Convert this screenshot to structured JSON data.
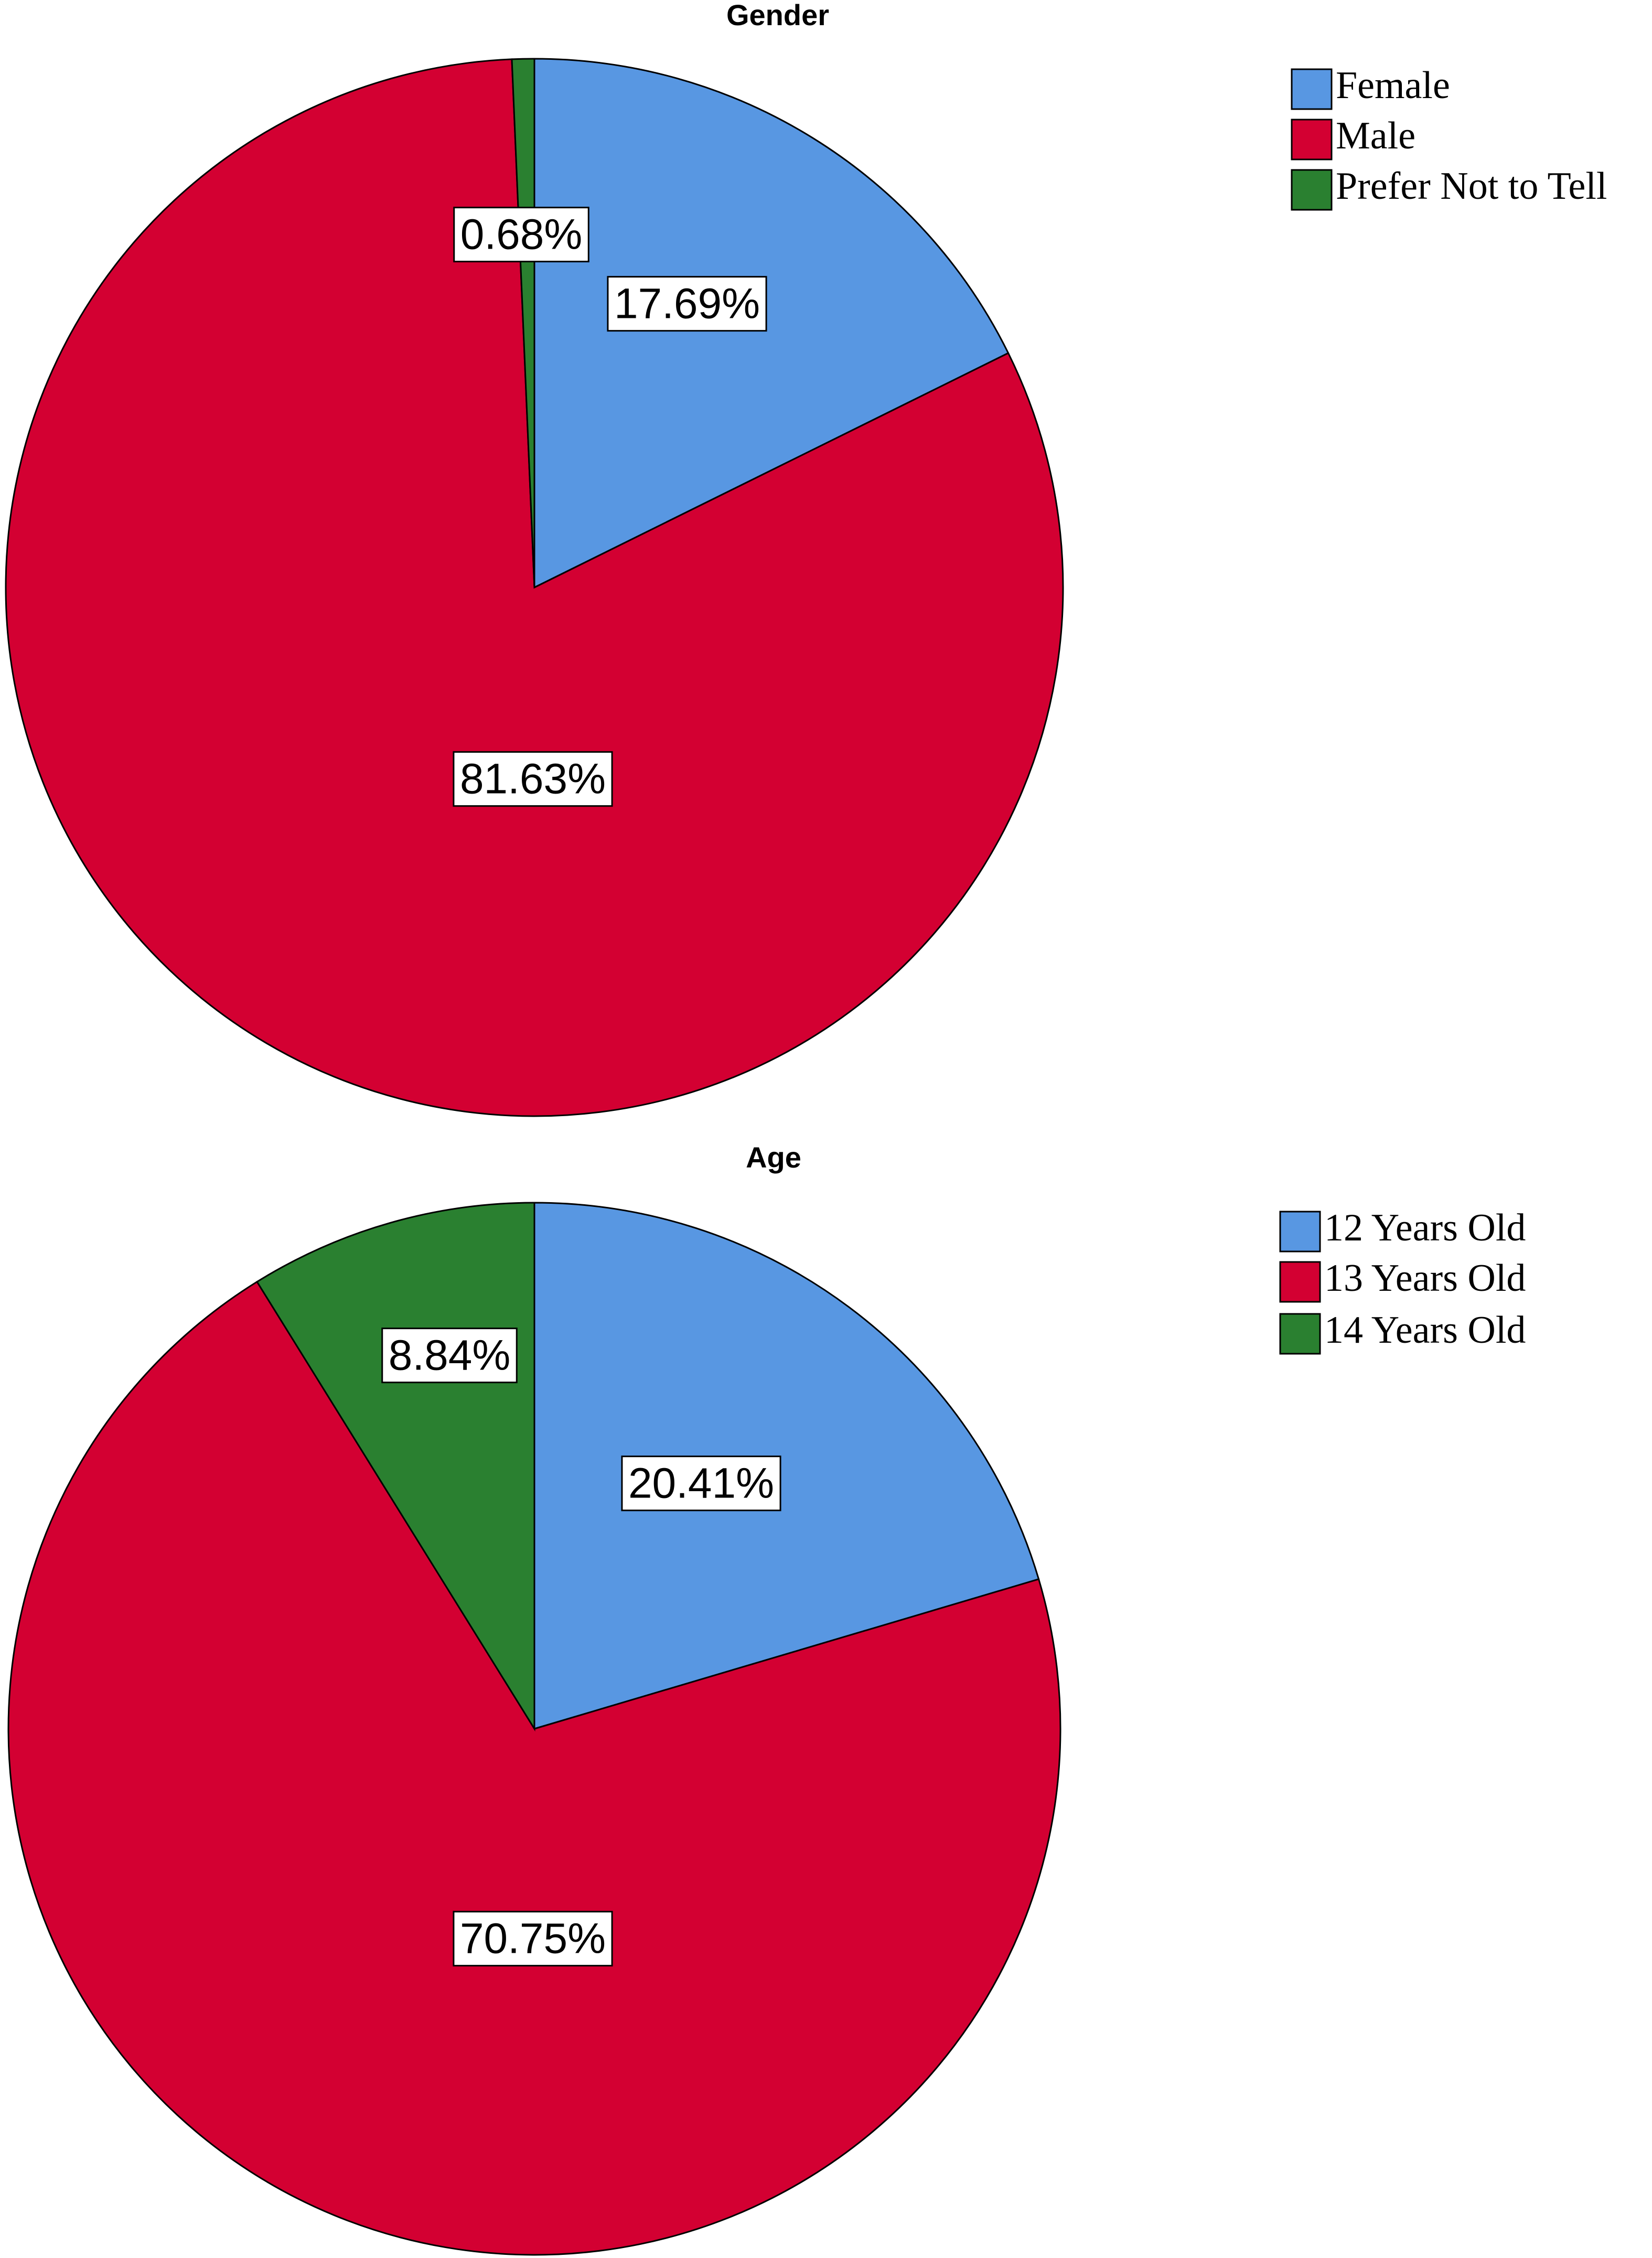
{
  "chart_data": [
    {
      "type": "pie",
      "title": "Gender",
      "categories": [
        "Female",
        "Male",
        "Prefer Not to Tell"
      ],
      "values": [
        17.69,
        81.63,
        0.68
      ],
      "value_labels": [
        "17.69%",
        "81.63%",
        "0.68%"
      ],
      "colors": [
        "#5897e2",
        "#d30032",
        "#2a8030"
      ]
    },
    {
      "type": "pie",
      "title": "Age",
      "categories": [
        "12 Years Old",
        "13 Years Old",
        "14 Years Old"
      ],
      "values": [
        20.41,
        70.75,
        8.84
      ],
      "value_labels": [
        "20.41%",
        "70.75%",
        "8.84%"
      ],
      "colors": [
        "#5897e2",
        "#d30032",
        "#2a8030"
      ]
    }
  ]
}
